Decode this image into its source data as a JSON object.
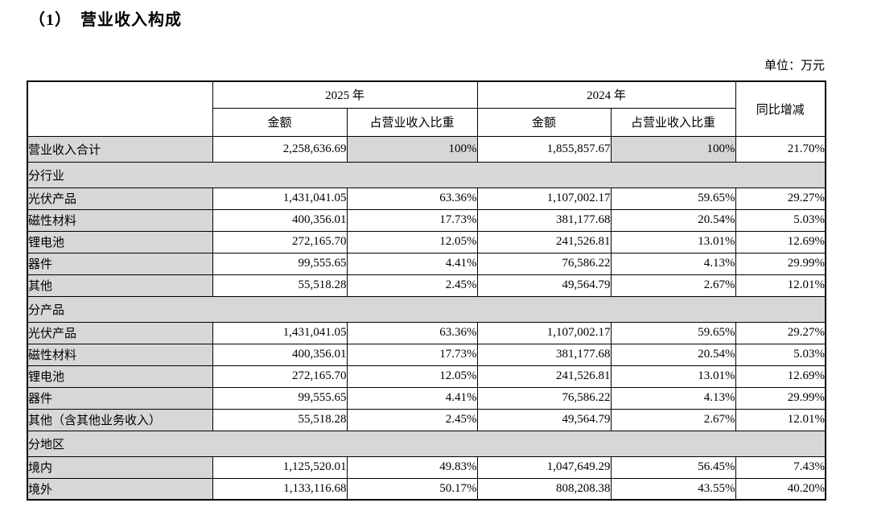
{
  "page": {
    "title": "（1）　营业收入构成",
    "unit_label": "单位：万元"
  },
  "colors": {
    "shade": "#d7d7d7",
    "border": "#000000",
    "background": "#ffffff"
  },
  "table": {
    "header": {
      "corner": "",
      "year_2025": "2025 年",
      "year_2024": "2024 年",
      "yoy": "同比增减",
      "amount": "金额",
      "share": "占营业收入比重"
    },
    "rows": [
      {
        "type": "total",
        "label": "营业收入合计",
        "cells": [
          "2,258,636.69",
          "100%",
          "1,855,857.67",
          "100%",
          "21.70%"
        ]
      },
      {
        "type": "section",
        "label": "分行业"
      },
      {
        "type": "data",
        "label": "光伏产品",
        "cells": [
          "1,431,041.05",
          "63.36%",
          "1,107,002.17",
          "59.65%",
          "29.27%"
        ]
      },
      {
        "type": "data",
        "label": "磁性材料",
        "cells": [
          "400,356.01",
          "17.73%",
          "381,177.68",
          "20.54%",
          "5.03%"
        ]
      },
      {
        "type": "data",
        "label": "锂电池",
        "cells": [
          "272,165.70",
          "12.05%",
          "241,526.81",
          "13.01%",
          "12.69%"
        ]
      },
      {
        "type": "data",
        "label": "器件",
        "cells": [
          "99,555.65",
          "4.41%",
          "76,586.22",
          "4.13%",
          "29.99%"
        ]
      },
      {
        "type": "data",
        "label": "其他",
        "cells": [
          "55,518.28",
          "2.45%",
          "49,564.79",
          "2.67%",
          "12.01%"
        ]
      },
      {
        "type": "section",
        "label": "分产品"
      },
      {
        "type": "data",
        "label": "光伏产品",
        "cells": [
          "1,431,041.05",
          "63.36%",
          "1,107,002.17",
          "59.65%",
          "29.27%"
        ]
      },
      {
        "type": "data",
        "label": "磁性材料",
        "cells": [
          "400,356.01",
          "17.73%",
          "381,177.68",
          "20.54%",
          "5.03%"
        ]
      },
      {
        "type": "data",
        "label": "锂电池",
        "cells": [
          "272,165.70",
          "12.05%",
          "241,526.81",
          "13.01%",
          "12.69%"
        ]
      },
      {
        "type": "data",
        "label": "器件",
        "cells": [
          "99,555.65",
          "4.41%",
          "76,586.22",
          "4.13%",
          "29.99%"
        ]
      },
      {
        "type": "data",
        "label": "其他（含其他业务收入）",
        "cells": [
          "55,518.28",
          "2.45%",
          "49,564.79",
          "2.67%",
          "12.01%"
        ]
      },
      {
        "type": "section",
        "label": "分地区"
      },
      {
        "type": "data",
        "label": "境内",
        "cells": [
          "1,125,520.01",
          "49.83%",
          "1,047,649.29",
          "56.45%",
          "7.43%"
        ]
      },
      {
        "type": "data",
        "label": "境外",
        "cells": [
          "1,133,116.68",
          "50.17%",
          "808,208.38",
          "43.55%",
          "40.20%"
        ]
      }
    ]
  }
}
